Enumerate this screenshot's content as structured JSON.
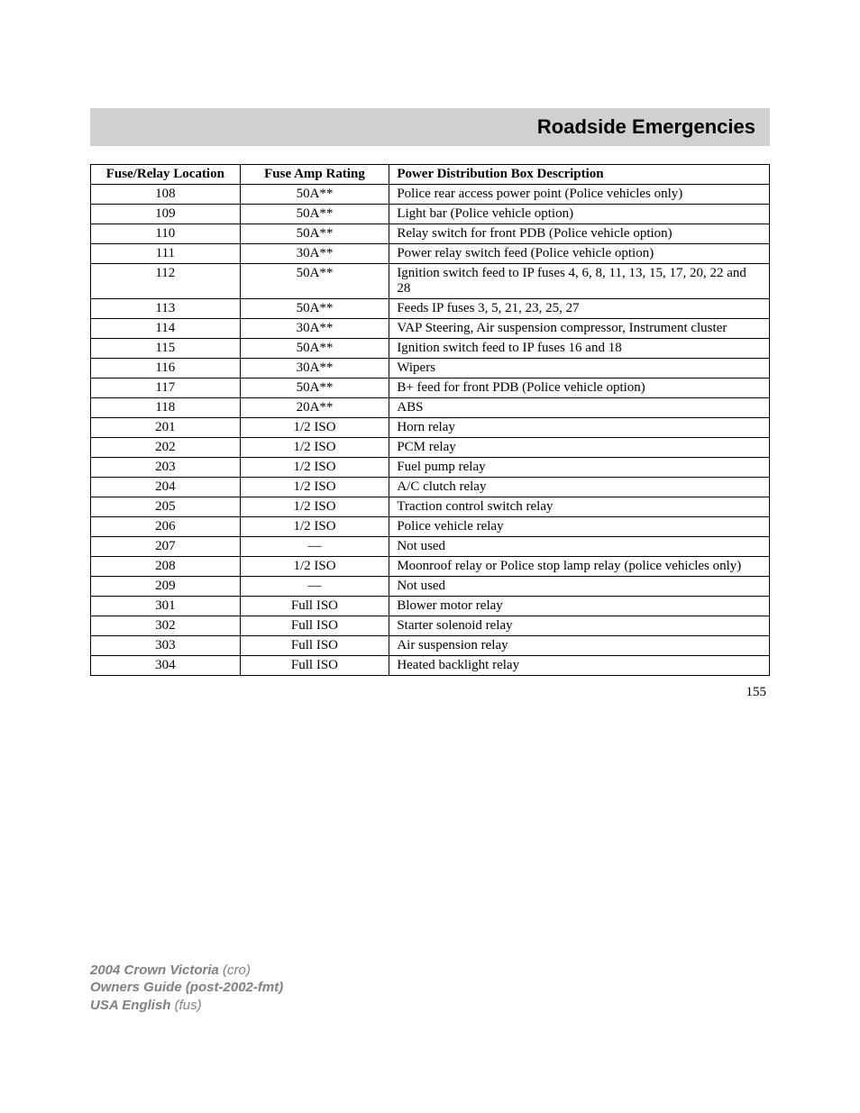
{
  "header": {
    "title": "Roadside Emergencies"
  },
  "table": {
    "headers": {
      "location": "Fuse/Relay Location",
      "rating": "Fuse Amp Rating",
      "description": "Power Distribution Box Description"
    },
    "rows": [
      {
        "location": "108",
        "rating": "50A**",
        "description": "Police rear access power point (Police vehicles only)"
      },
      {
        "location": "109",
        "rating": "50A**",
        "description": "Light bar (Police vehicle option)"
      },
      {
        "location": "110",
        "rating": "50A**",
        "description": "Relay switch for front PDB (Police vehicle option)"
      },
      {
        "location": "111",
        "rating": "30A**",
        "description": "Power relay switch feed (Police vehicle option)"
      },
      {
        "location": "112",
        "rating": "50A**",
        "description": "Ignition switch feed to IP fuses 4, 6, 8, 11, 13, 15, 17, 20, 22 and 28"
      },
      {
        "location": "113",
        "rating": "50A**",
        "description": "Feeds IP fuses 3, 5, 21, 23, 25, 27"
      },
      {
        "location": "114",
        "rating": "30A**",
        "description": "VAP Steering, Air suspension compressor, Instrument cluster"
      },
      {
        "location": "115",
        "rating": "50A**",
        "description": "Ignition switch feed to IP fuses 16 and 18"
      },
      {
        "location": "116",
        "rating": "30A**",
        "description": "Wipers"
      },
      {
        "location": "117",
        "rating": "50A**",
        "description": "B+ feed for front PDB (Police vehicle option)"
      },
      {
        "location": "118",
        "rating": "20A**",
        "description": "ABS"
      },
      {
        "location": "201",
        "rating": "1/2 ISO",
        "description": "Horn relay"
      },
      {
        "location": "202",
        "rating": "1/2 ISO",
        "description": "PCM relay"
      },
      {
        "location": "203",
        "rating": "1/2 ISO",
        "description": "Fuel pump relay"
      },
      {
        "location": "204",
        "rating": "1/2 ISO",
        "description": "A/C clutch relay"
      },
      {
        "location": "205",
        "rating": "1/2 ISO",
        "description": "Traction control switch relay"
      },
      {
        "location": "206",
        "rating": "1/2 ISO",
        "description": "Police vehicle relay"
      },
      {
        "location": "207",
        "rating": "—",
        "description": "Not used"
      },
      {
        "location": "208",
        "rating": "1/2 ISO",
        "description": "Moonroof relay or Police stop lamp relay (police vehicles only)"
      },
      {
        "location": "209",
        "rating": "—",
        "description": "Not used"
      },
      {
        "location": "301",
        "rating": "Full ISO",
        "description": "Blower motor relay"
      },
      {
        "location": "302",
        "rating": "Full ISO",
        "description": "Starter solenoid relay"
      },
      {
        "location": "303",
        "rating": "Full ISO",
        "description": "Air suspension relay"
      },
      {
        "location": "304",
        "rating": "Full ISO",
        "description": "Heated backlight relay"
      }
    ]
  },
  "page_number": "155",
  "footer": {
    "line1_bold": "2004 Crown Victoria",
    "line1_italic": "(cro)",
    "line2_bold": "Owners Guide (post-2002-fmt)",
    "line3_bold": "USA English",
    "line3_italic": "(fus)"
  },
  "styling": {
    "header_bg": "#d0d0d0",
    "header_text_color": "#000000",
    "border_color": "#000000",
    "body_bg": "#ffffff",
    "footer_color": "#808080",
    "header_fontsize": 22,
    "table_fontsize": 15,
    "footer_fontsize": 15
  }
}
